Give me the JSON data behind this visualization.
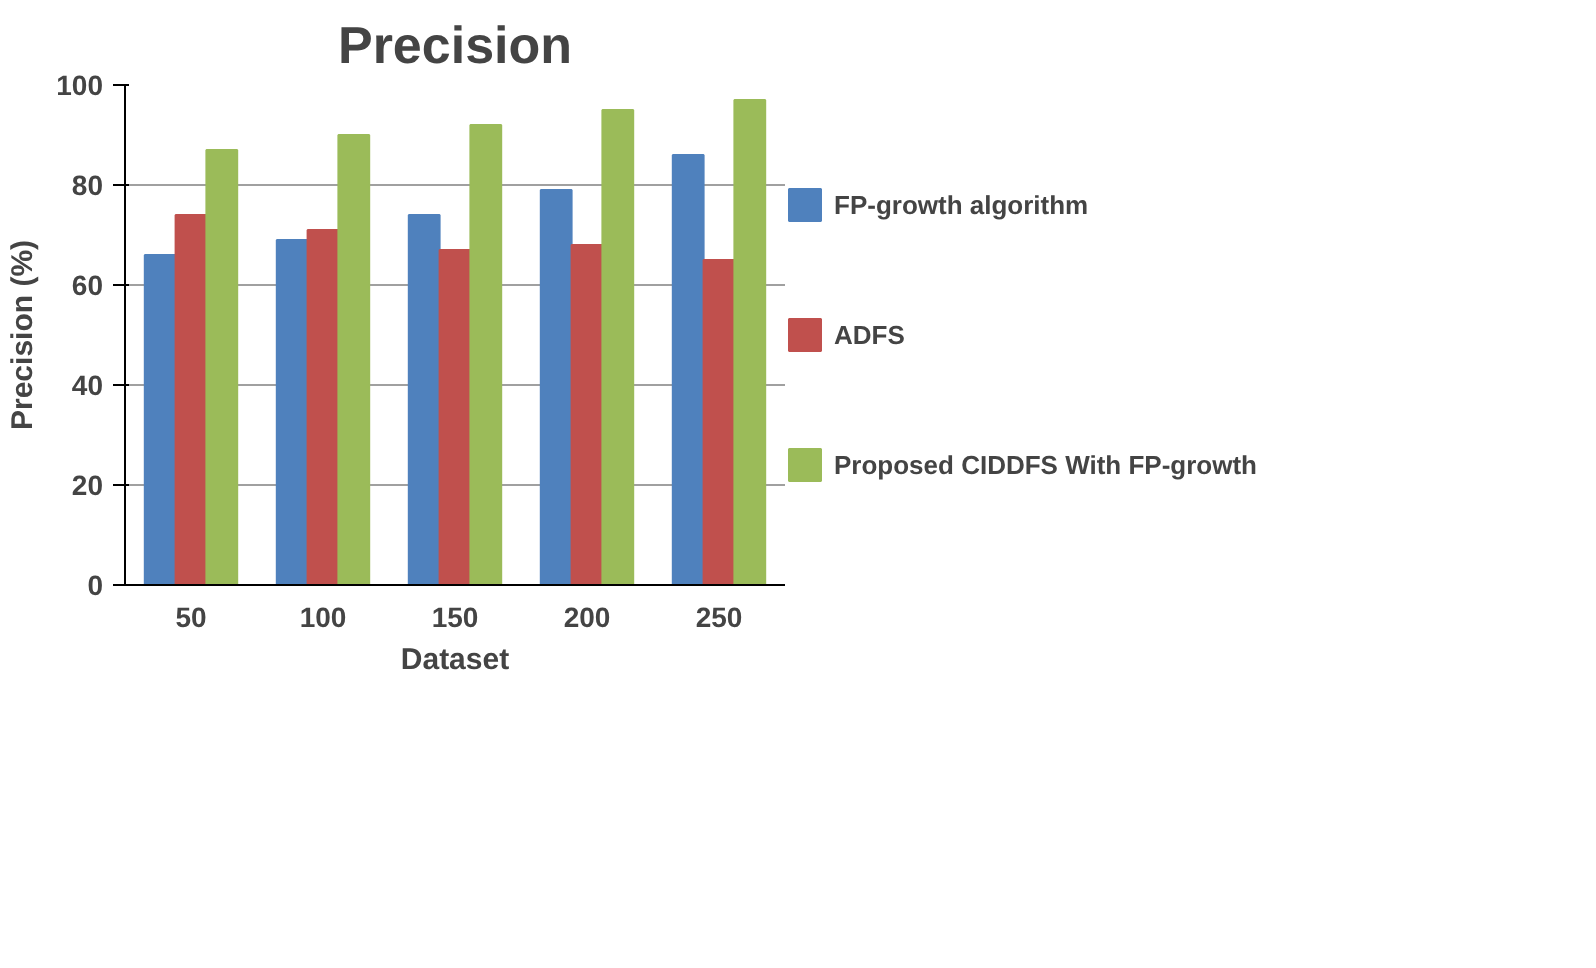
{
  "chart_data": {
    "type": "bar",
    "title": "Precision",
    "xlabel": "Dataset",
    "ylabel": "Precision (%)",
    "categories": [
      "50",
      "100",
      "150",
      "200",
      "250"
    ],
    "series": [
      {
        "name": "FP-growth algorithm",
        "color": "#4f81bd",
        "values": [
          66,
          69,
          74,
          79,
          86
        ]
      },
      {
        "name": "ADFS",
        "color": "#c0504d",
        "values": [
          74,
          71,
          67,
          68,
          65
        ]
      },
      {
        "name": "Proposed CIDDFS With FP-growth",
        "color": "#9bbb59",
        "values": [
          87,
          90,
          92,
          95,
          97
        ]
      }
    ],
    "ylim": [
      0,
      100
    ],
    "yticks": [
      0,
      20,
      40,
      60,
      80,
      100
    ],
    "grid": "y",
    "legend": "right"
  }
}
